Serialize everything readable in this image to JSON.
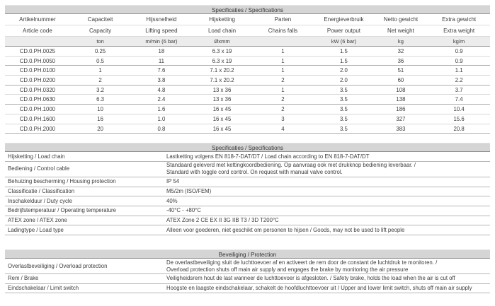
{
  "colors": {
    "title_bar_bg": "#d5d5d5",
    "units_row_bg": "#ececec",
    "dark_line": "#8f8f8f",
    "mid_line": "#b0b0b0",
    "light_line": "#d8d8d8",
    "text": "#3d3d3d"
  },
  "spec_table": {
    "title": "Specificaties / Specifications",
    "columns": [
      {
        "nl": "Artikelnummer",
        "en": "Article code",
        "unit": ""
      },
      {
        "nl": "Capaciteit",
        "en": "Capacity",
        "unit": "ton"
      },
      {
        "nl": "Hijssnelheid",
        "en": "Lifting speed",
        "unit": "m/min (6 bar)"
      },
      {
        "nl": "Hijsketting",
        "en": "Load chain",
        "unit": "Øxmm"
      },
      {
        "nl": "Parten",
        "en": "Chains falls",
        "unit": ""
      },
      {
        "nl": "Energieverbruik",
        "en": "Power output",
        "unit": "kW (6 bar)"
      },
      {
        "nl": "Netto gewicht",
        "en": "Net weight",
        "unit": "kg"
      },
      {
        "nl": "Extra gewicht",
        "en": "Extra weight",
        "unit": "kg/m"
      }
    ],
    "rows": [
      [
        "CD.0.PH.0025",
        "0.25",
        "18",
        "6.3 x 19",
        "1",
        "1.5",
        "32",
        "0.9"
      ],
      [
        "CD.0.PH.0050",
        "0.5",
        "11",
        "6.3 x 19",
        "1",
        "1.5",
        "36",
        "0.9"
      ],
      [
        "CD.0.PH.0100",
        "1",
        "7.6",
        "7.1 x 20.2",
        "1",
        "2.0",
        "51",
        "1.1"
      ],
      [
        "CD.0.PH.0200",
        "2",
        "3.8",
        "7.1 x 20.2",
        "2",
        "2.0",
        "60",
        "2.2"
      ],
      [
        "CD.0.PH.0320",
        "3.2",
        "4.8",
        "13 x 36",
        "1",
        "3.5",
        "108",
        "3.7"
      ],
      [
        "CD.0.PH.0630",
        "6.3",
        "2.4",
        "13 x 36",
        "2",
        "3.5",
        "138",
        "7.4"
      ],
      [
        "CD.0.PH.1000",
        "10",
        "1.6",
        "16 x 45",
        "2",
        "3.5",
        "186",
        "10.4"
      ],
      [
        "CD.0.PH.1600",
        "16",
        "1.0",
        "16 x 45",
        "3",
        "3.5",
        "327",
        "15.6"
      ],
      [
        "CD.0.PH.2000",
        "20",
        "0.8",
        "16 x 45",
        "4",
        "3.5",
        "383",
        "20.8"
      ]
    ],
    "group_breaks_after": [
      1,
      3,
      5,
      8
    ]
  },
  "details_table": {
    "title": "Specificaties / Specifications",
    "rows": [
      {
        "label": "Hijsketting / Load chain",
        "lines": [
          "Lastketting volgens EN 818-7-DAT/DT / Load chain according to EN 818-7-DAT/DT"
        ]
      },
      {
        "label": "Bediening / Control cable",
        "lines": [
          "Standaard geleverd met kettingkoordbediening. Op aanvraag ook met drukknop bediening leverbaar. /",
          "Standard with toggle cord control. On request with manual valve control."
        ]
      },
      {
        "label": "Behuizing bescherming / Housing protection",
        "lines": [
          "IP 54"
        ]
      },
      {
        "label": "Classificatie / Classification",
        "lines": [
          "M5/2m (ISO/FEM)"
        ]
      },
      {
        "label": "Inschakelduur / Duty cycle",
        "lines": [
          "40%"
        ]
      },
      {
        "label": "Bedrijfstemperatuur / Operating temperature",
        "lines": [
          "-40°C  -  +80°C"
        ]
      },
      {
        "label": "ATEX zone / ATEX zone",
        "lines": [
          "ATEX Zone 2 CE EX II 3G IIB T3 / 3D T200°C"
        ]
      },
      {
        "label": "Ladingtype / Load type",
        "lines": [
          "Alleen voor goederen, niet geschikt om personen te hijsen / Goods, may not be used to lift people"
        ]
      }
    ]
  },
  "protection_table": {
    "title": "Beveiliging / Protection",
    "rows": [
      {
        "label": "Overlastbeveiliging / Overload protection",
        "lines": [
          "De overlastbeveiliging  sluit de luchttoevoer af en activeert de rem door de constant de luchtdruk te monitoren. /",
          "Overload protection shuts off main air supply and engages the brake by monitoring the air pressure"
        ]
      },
      {
        "label": "Rem / Brake",
        "lines": [
          "Veiligheidsrem hout de last wanneer de luchttoevoer is afgesloten. / Safety brake, holds the load when the air is cut off"
        ]
      },
      {
        "label": "Eindschakelaar / Limit switch",
        "lines": [
          "Hoogste en laagste eindschakelaar, schakelt de hoofdluchttoevoer uit / Upper and lower limit switch, shuts off main air supply"
        ]
      }
    ]
  }
}
